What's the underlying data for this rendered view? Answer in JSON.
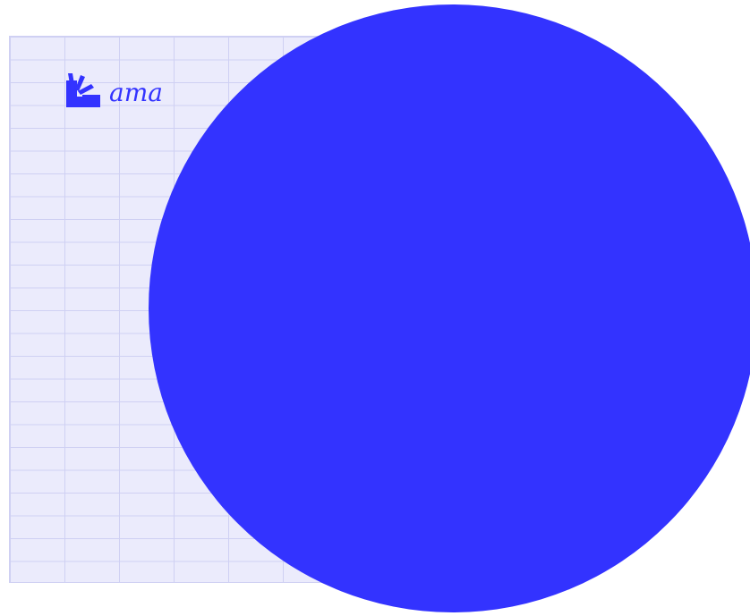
{
  "brand": {
    "logo_text": "ama",
    "logo_icon": "hand-rays-icon",
    "color": "#3333ff"
  },
  "colors": {
    "sheet_background": "#ebebfc",
    "sheet_gridlines": "#cfd0f3",
    "circle": "#3333ff",
    "page_background": "#ffffff"
  }
}
